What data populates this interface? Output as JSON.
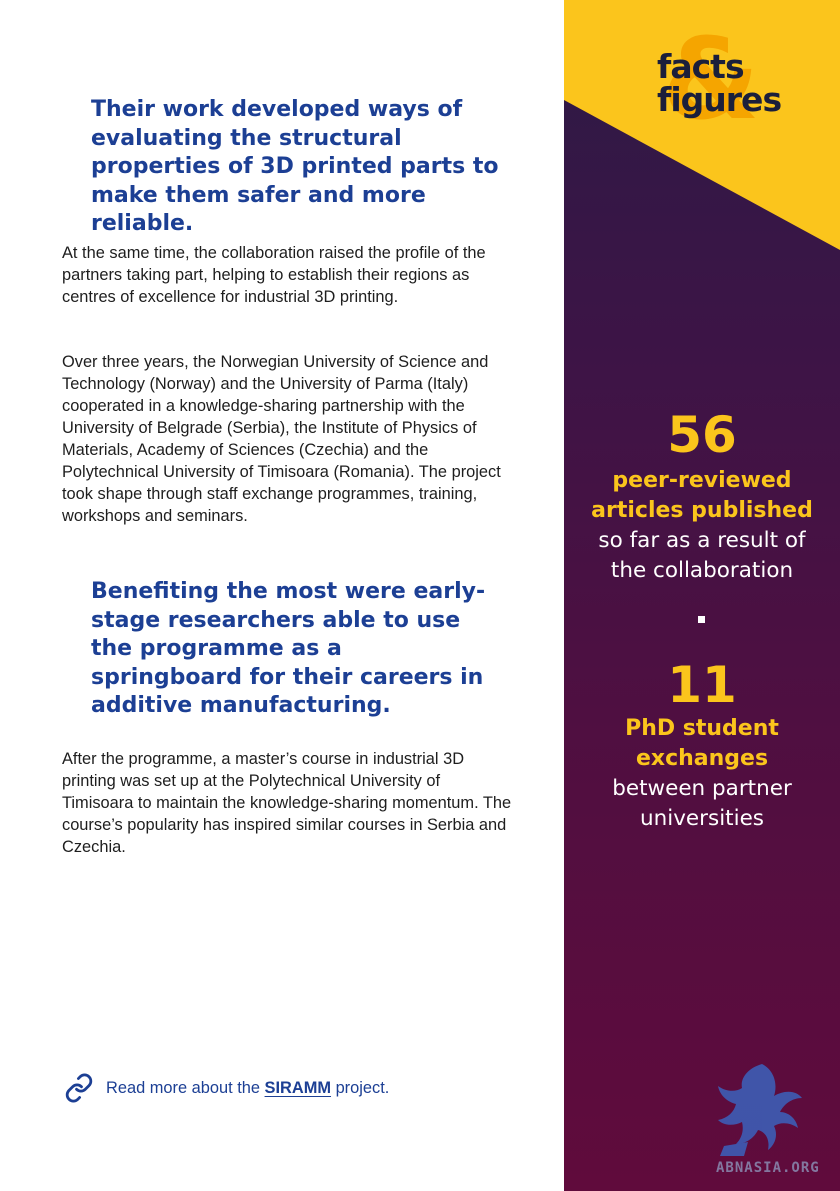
{
  "quote1": "Their work developed ways of evaluating the structural properties of 3D printed parts to make them safer and more reliable.",
  "para1": "At the same time, the collaboration raised the profile of the partners taking part, helping to establish their regions as centres of excellence for industrial 3D printing.",
  "para2": "Over three years, the Norwegian University of Science and Technology (Norway) and the University of Parma (Italy) cooperated in a knowledge-sharing partnership with the University of Belgrade (Serbia), the Institute of Physics of Materials, Academy of Sciences (Czechia) and the Polytechnical University of Timisoara (Romania). The project took shape through staff exchange programmes, training, workshops and seminars.",
  "quote2": "Benefiting the most were early-stage researchers able to use the programme as a springboard for their careers in additive manufacturing.",
  "para3": "After the programme, a master’s course in industrial 3D printing was set up at the Polytechnical University of Timisoara to maintain the knowledge-sharing momentum. The course’s popularity has inspired similar courses in Serbia and Czechia.",
  "readmore": {
    "prefix": "Read more about the ",
    "link": "SIRAMM",
    "suffix": " project.",
    "icon": "link-icon"
  },
  "sidebar": {
    "badge": {
      "amp": "&",
      "line1": "facts",
      "line2": "figures"
    },
    "stats": [
      {
        "number": "56",
        "highlight_line1": "peer-reviewed",
        "highlight_line2": "articles published",
        "desc_line1": "so far as a result of",
        "desc_line2": "the collaboration"
      },
      {
        "number": "11",
        "highlight_line1": "PhD student",
        "highlight_line2": "exchanges",
        "desc_line1": "between partner",
        "desc_line2": "universities"
      }
    ],
    "watermark": "ABNASIA.ORG"
  },
  "colors": {
    "accent_blue": "#1c3f94",
    "yellow": "#fbc51c",
    "sidebar_dark": "#2d1a45",
    "sidebar_bottom": "#600b3c"
  }
}
